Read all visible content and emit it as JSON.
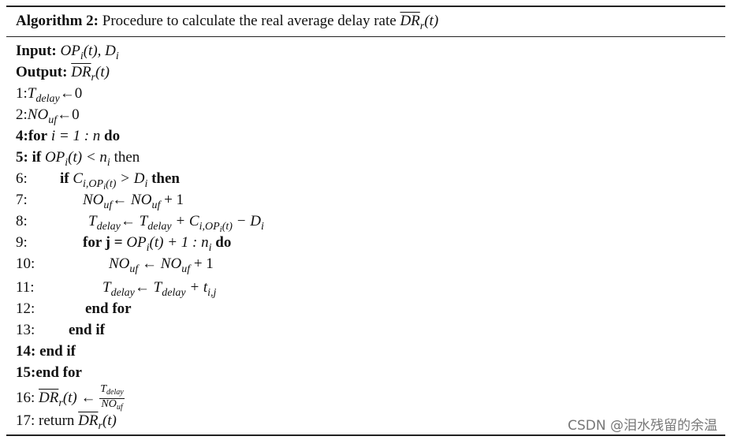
{
  "header": {
    "label": "Algorithm 2:",
    "text": "Procedure to calculate the real average delay rate",
    "math": [
      "DR",
      "r",
      "(t)"
    ]
  },
  "lines": [
    [
      "Input:",
      "OP",
      "i",
      "(t), D",
      "i"
    ],
    [
      "Output:",
      "DR",
      "r",
      "(t)"
    ],
    [
      "1:",
      "T",
      "delay",
      "←0"
    ],
    [
      "2:",
      "NO",
      "uf",
      "←0"
    ],
    [
      "4:for",
      "i = 1 : n",
      "do"
    ],
    [
      "5: if",
      "OP",
      "i",
      "(t) < n",
      "i",
      "then"
    ],
    [
      "6:",
      "if",
      "C",
      "i,OP",
      "i",
      "(t)",
      "> D",
      "i",
      "then"
    ],
    [
      "7:",
      "NO",
      "uf",
      "← NO",
      "uf",
      "+ 1"
    ],
    [
      "8:",
      "T",
      "delay",
      "← T",
      "delay",
      "+ C",
      "i,OP",
      "i",
      "(t)",
      "− D",
      "i"
    ],
    [
      "9:",
      "for j =",
      "OP",
      "i",
      "(t) + 1 : n",
      "i",
      "do"
    ],
    [
      "10:",
      "NO",
      "uf",
      "← NO",
      "uf",
      "+ 1"
    ],
    [
      "11:",
      "T",
      "delay",
      "← T",
      "delay",
      "+ t",
      "i,j"
    ],
    [
      "12:",
      "end for"
    ],
    [
      "13:",
      "end if"
    ],
    [
      "14: end if"
    ],
    [
      "15:end for"
    ],
    [
      "16:",
      "DR",
      "r",
      "(t) ←",
      "T",
      "delay",
      "NO",
      "uf"
    ],
    [
      "17: return",
      "DR",
      "r",
      "(t)"
    ]
  ],
  "watermark": "CSDN @泪水残留的余温"
}
